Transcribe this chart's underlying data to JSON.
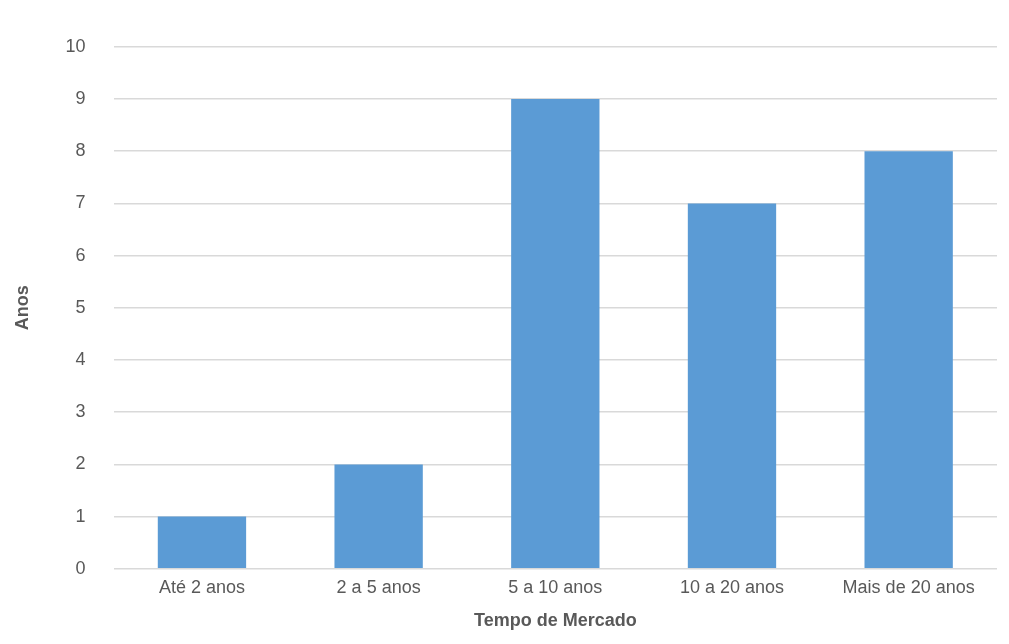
{
  "chart_data": {
    "type": "bar",
    "xlabel": "Tempo de Mercado",
    "ylabel": "Anos",
    "categories": [
      "Até 2 anos",
      "2 a 5 anos",
      "5 a 10 anos",
      "10 a 20 anos",
      "Mais de 20 anos"
    ],
    "values": [
      1,
      2,
      9,
      7,
      8
    ],
    "color": "#5b9bd5",
    "ylim": [
      0,
      10
    ],
    "yticks": [
      0,
      1,
      2,
      3,
      4,
      5,
      6,
      7,
      8,
      9,
      10
    ],
    "grid": "y",
    "legend": false
  }
}
